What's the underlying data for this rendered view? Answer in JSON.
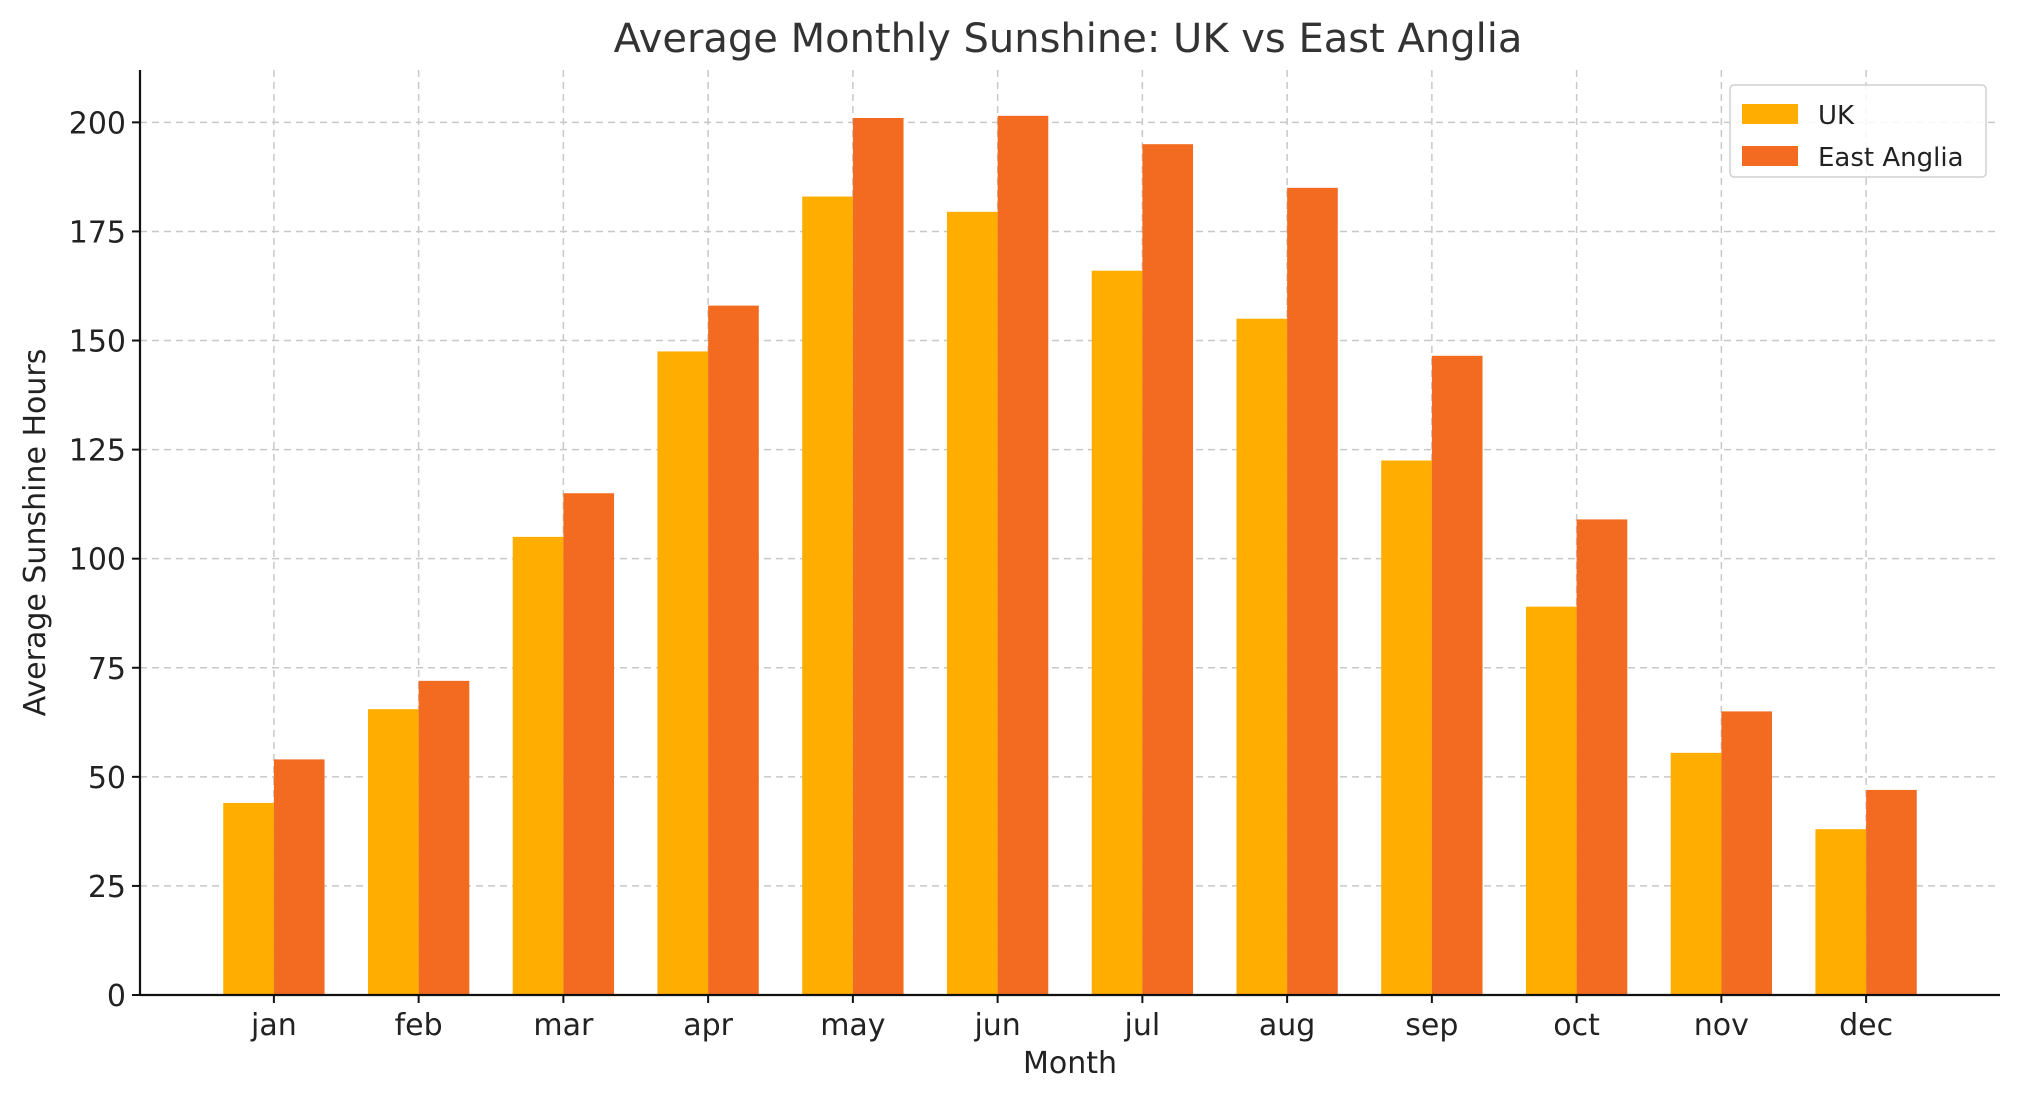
{
  "chart_data": {
    "type": "bar",
    "title": "Average Monthly Sunshine: UK vs East Anglia",
    "xlabel": "Month",
    "ylabel": "Average Sunshine Hours",
    "categories": [
      "jan",
      "feb",
      "mar",
      "apr",
      "may",
      "jun",
      "jul",
      "aug",
      "sep",
      "oct",
      "nov",
      "dec"
    ],
    "series": [
      {
        "name": "UK",
        "color": "#FFAE00",
        "values": [
          44,
          65.5,
          105,
          147.5,
          183,
          179.5,
          166,
          155,
          122.5,
          89,
          55.5,
          38
        ]
      },
      {
        "name": "East Anglia",
        "color": "#F26B21",
        "values": [
          54,
          72,
          115,
          158,
          201,
          201.5,
          195,
          185,
          146.5,
          109,
          65,
          47
        ]
      }
    ],
    "ylim": [
      0,
      212
    ],
    "yticks": [
      0,
      25,
      50,
      75,
      100,
      125,
      150,
      175,
      200
    ],
    "grid": true,
    "legend_position": "top-right"
  }
}
